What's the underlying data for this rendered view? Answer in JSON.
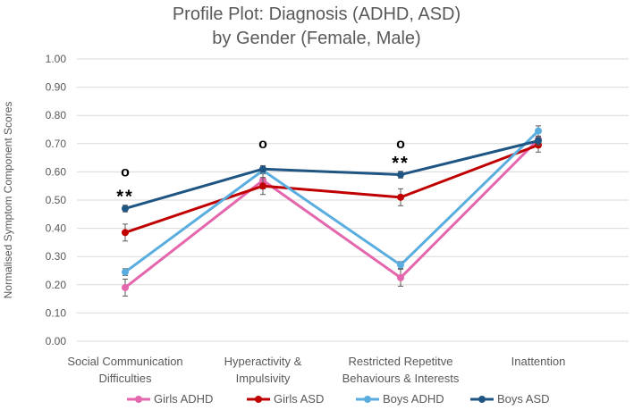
{
  "chart_data": {
    "type": "line",
    "title_lines": [
      "Profile Plot:  Diagnosis (ADHD, ASD)",
      "by Gender (Female, Male)"
    ],
    "ylabel": "Normalised Symptom Component Scores",
    "xlabel": "",
    "ylim": [
      0,
      1
    ],
    "y_ticks": [
      "0.00",
      "0.10",
      "0.20",
      "0.30",
      "0.40",
      "0.50",
      "0.60",
      "0.70",
      "0.80",
      "0.90",
      "1.00"
    ],
    "grid": true,
    "legend_position": "bottom",
    "categories": [
      [
        "Social Communication",
        "Difficulties"
      ],
      [
        "Hyperactivity &",
        "Impulsivity"
      ],
      [
        "Restricted Repetitve",
        "Behaviours & Interests"
      ],
      [
        "Inattention"
      ]
    ],
    "series": [
      {
        "name": "Girls ADHD",
        "color": "#E466AC",
        "values": [
          0.19,
          0.57,
          0.225,
          0.715
        ],
        "err": [
          0.03,
          0.03,
          0.03,
          0.025
        ]
      },
      {
        "name": "Girls ASD",
        "color": "#C00000",
        "values": [
          0.385,
          0.55,
          0.51,
          0.695
        ],
        "err": [
          0.03,
          0.03,
          0.03,
          0.025
        ]
      },
      {
        "name": "Boys ADHD",
        "color": "#5AAEDF",
        "values": [
          0.245,
          0.605,
          0.27,
          0.745
        ],
        "err": [
          0.012,
          0.012,
          0.012,
          0.018
        ]
      },
      {
        "name": "Boys ASD",
        "color": "#1F5582",
        "values": [
          0.47,
          0.61,
          0.59,
          0.71
        ],
        "err": [
          0.012,
          0.012,
          0.012,
          0.015
        ]
      }
    ],
    "annotations": [
      {
        "category": 0,
        "text": "**",
        "y": 0.52
      },
      {
        "category": 0,
        "text": "o",
        "y": 0.6
      },
      {
        "category": 1,
        "text": "o",
        "y": 0.7
      },
      {
        "category": 2,
        "text": "**",
        "y": 0.64
      },
      {
        "category": 2,
        "text": "o",
        "y": 0.7
      }
    ]
  }
}
